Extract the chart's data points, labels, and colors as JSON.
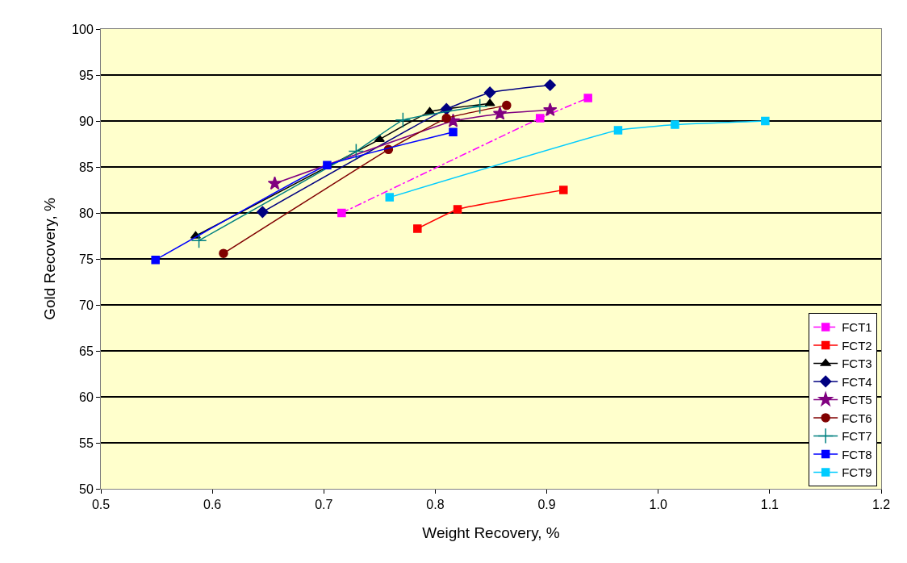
{
  "chart_data": {
    "type": "line",
    "xlabel": "Weight Recovery, %",
    "ylabel": "Gold Recovery, %",
    "xlim": [
      0.5,
      1.2
    ],
    "xticks": [
      {
        "value": 0.5,
        "label": "0.5"
      },
      {
        "value": 0.6,
        "label": "0.6"
      },
      {
        "value": 0.7,
        "label": "0.7"
      },
      {
        "value": 0.8,
        "label": "0.8"
      },
      {
        "value": 0.9,
        "label": "0.9"
      },
      {
        "value": 1.0,
        "label": "1.0"
      },
      {
        "value": 1.1,
        "label": "1.1"
      },
      {
        "value": 1.2,
        "label": "1.2"
      }
    ],
    "ylim": [
      50,
      100
    ],
    "yticks": [
      50,
      55,
      60,
      65,
      70,
      75,
      80,
      85,
      90,
      95,
      100
    ],
    "grid": "y",
    "legend": "bottom right",
    "series": [
      {
        "name": "FCT1",
        "color": "#ff00ff",
        "marker": "square",
        "line_style": "dashed",
        "x": [
          0.716,
          0.894,
          0.937
        ],
        "values": [
          80.0,
          90.3,
          92.5
        ]
      },
      {
        "name": "FCT2",
        "color": "#ff0000",
        "marker": "square",
        "x": [
          0.784,
          0.82,
          0.915
        ],
        "values": [
          78.3,
          80.4,
          82.5
        ]
      },
      {
        "name": "FCT3",
        "color": "#000000",
        "marker": "triangle",
        "x": [
          0.585,
          0.75,
          0.795,
          0.849
        ],
        "values": [
          77.5,
          88.0,
          91.0,
          91.9
        ]
      },
      {
        "name": "FCT4",
        "color": "#000080",
        "marker": "diamond",
        "x": [
          0.645,
          0.81,
          0.849,
          0.903
        ],
        "values": [
          80.1,
          91.3,
          93.1,
          93.9
        ]
      },
      {
        "name": "FCT5",
        "color": "#800080",
        "marker": "star",
        "x": [
          0.656,
          0.816,
          0.858,
          0.903
        ],
        "values": [
          83.2,
          90.0,
          90.8,
          91.2
        ]
      },
      {
        "name": "FCT6",
        "color": "#800000",
        "marker": "circle",
        "x": [
          0.61,
          0.758,
          0.81,
          0.864
        ],
        "values": [
          75.6,
          86.9,
          90.3,
          91.7
        ]
      },
      {
        "name": "FCT7",
        "color": "#008080",
        "marker": "cross",
        "x": [
          0.588,
          0.729,
          0.771,
          0.84
        ],
        "values": [
          77.0,
          86.7,
          90.1,
          91.6
        ]
      },
      {
        "name": "FCT8",
        "color": "#0000ff",
        "marker": "square",
        "x": [
          0.549,
          0.703,
          0.816
        ],
        "values": [
          74.9,
          85.2,
          88.8
        ]
      },
      {
        "name": "FCT9",
        "color": "#00ccff",
        "marker": "square",
        "x": [
          0.759,
          0.964,
          1.015,
          1.096
        ],
        "values": [
          81.7,
          89.0,
          89.6,
          90.0
        ]
      }
    ]
  }
}
